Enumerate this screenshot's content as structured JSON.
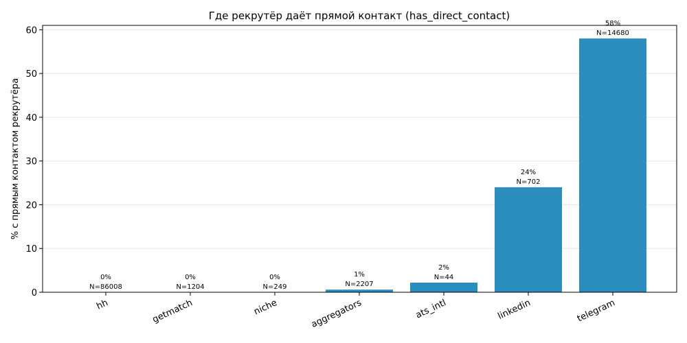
{
  "chart_data": {
    "type": "bar",
    "title": "Где рекрутёр даёт прямой контакт (has_direct_contact)",
    "ylabel": "% с прямым контактом рекрутёра",
    "xlabel": "",
    "categories": [
      "hh",
      "getmatch",
      "niche",
      "aggregators",
      "ats_intl",
      "linkedin",
      "telegram"
    ],
    "values": [
      0.0,
      0.0,
      0.0,
      0.6,
      2.2,
      24.0,
      58.0
    ],
    "pct_labels": [
      "0%",
      "0%",
      "0%",
      "1%",
      "2%",
      "24%",
      "58%"
    ],
    "n_labels": [
      "N=86008",
      "N=1204",
      "N=249",
      "N=2207",
      "N=44",
      "N=702",
      "N=14680"
    ],
    "ylim": [
      0,
      61
    ],
    "yticks": [
      0,
      10,
      20,
      30,
      40,
      50,
      60
    ],
    "bar_color": "#2b8cbe",
    "grid": "y",
    "legend": "none"
  }
}
